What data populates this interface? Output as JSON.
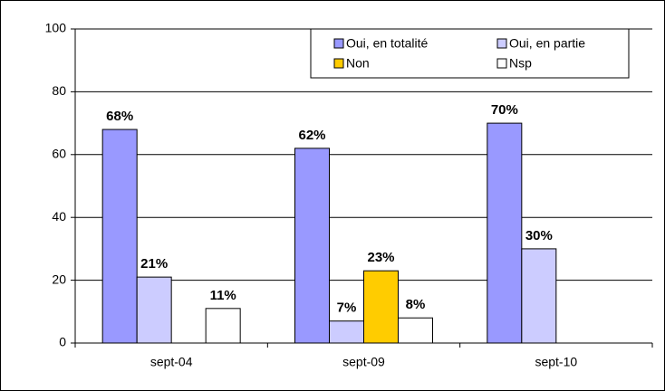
{
  "chart_data": {
    "type": "bar",
    "categories": [
      "sept-04",
      "sept-09",
      "sept-10"
    ],
    "series": [
      {
        "name": "Oui, en totalité",
        "color": "#9999ff",
        "values": [
          68,
          62,
          70
        ],
        "value_labels": [
          "68%",
          "62%",
          "70%"
        ]
      },
      {
        "name": "Oui, en partie",
        "color": "#ccccff",
        "values": [
          21,
          7,
          30
        ],
        "value_labels": [
          "21%",
          "7%",
          "30%"
        ]
      },
      {
        "name": "Non",
        "color": "#ffcc00",
        "values": [
          null,
          23,
          null
        ],
        "value_labels": [
          null,
          "23%",
          null
        ]
      },
      {
        "name": "Nsp",
        "color": "#ffffff",
        "values": [
          11,
          8,
          null
        ],
        "value_labels": [
          "11%",
          "8%",
          null
        ]
      }
    ],
    "ylim": [
      0,
      100
    ],
    "yticks": [
      0,
      20,
      40,
      60,
      80,
      100
    ],
    "grid": true,
    "legend": "top-right"
  }
}
